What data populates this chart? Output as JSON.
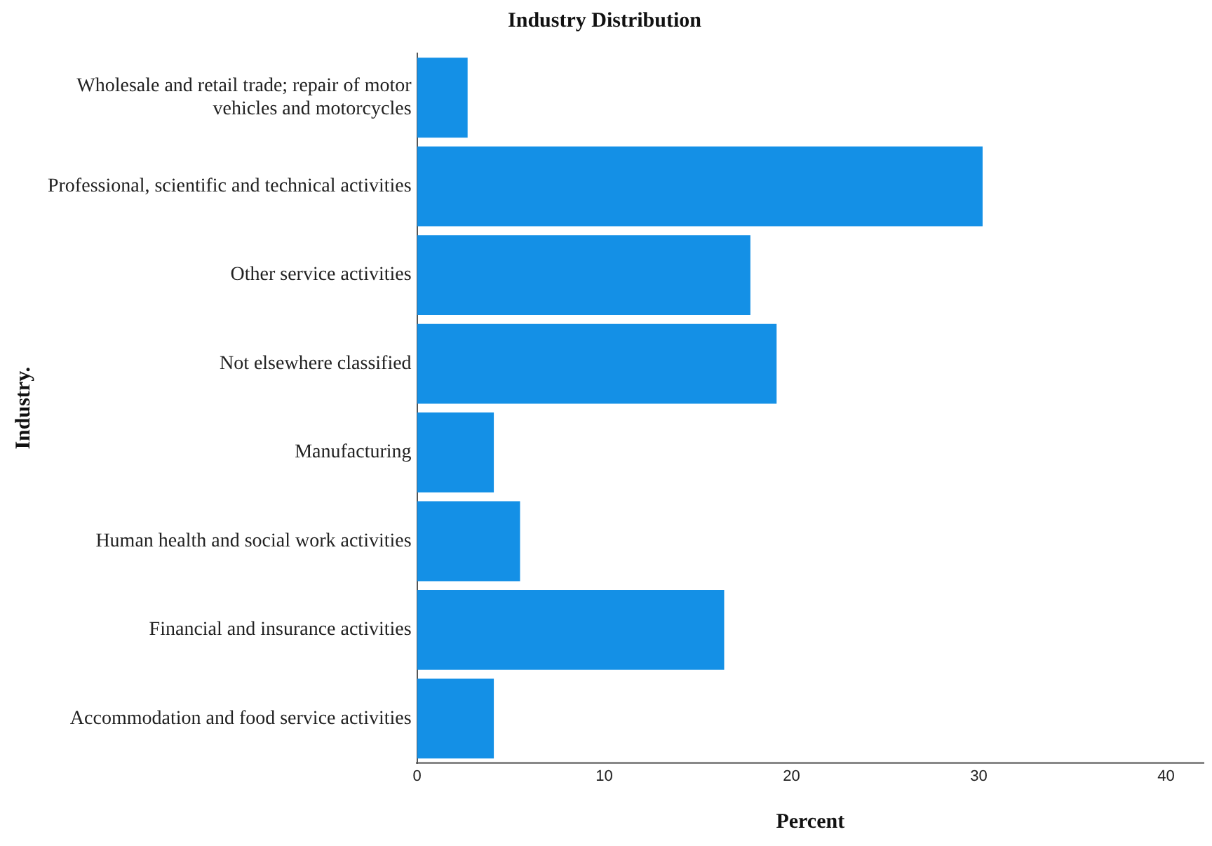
{
  "chart_data": {
    "type": "bar",
    "orientation": "horizontal",
    "title": "Industry Distribution",
    "xlabel": "Percent",
    "ylabel": "Industry.",
    "categories": [
      "Wholesale and retail trade; repair of motor vehicles and motorcycles",
      "Professional, scientific and technical activities",
      "Other service activities",
      "Not elsewhere classified",
      "Manufacturing",
      "Human health and social work activities",
      "Financial and insurance activities",
      "Accommodation and food service activities"
    ],
    "values": [
      2.7,
      30.2,
      17.8,
      19.2,
      4.1,
      5.5,
      16.4,
      4.1
    ],
    "color": "#1490e6",
    "xlim": [
      0,
      42
    ],
    "xticks": [
      0,
      10,
      20,
      30,
      40
    ],
    "grid": false,
    "legend": false
  }
}
